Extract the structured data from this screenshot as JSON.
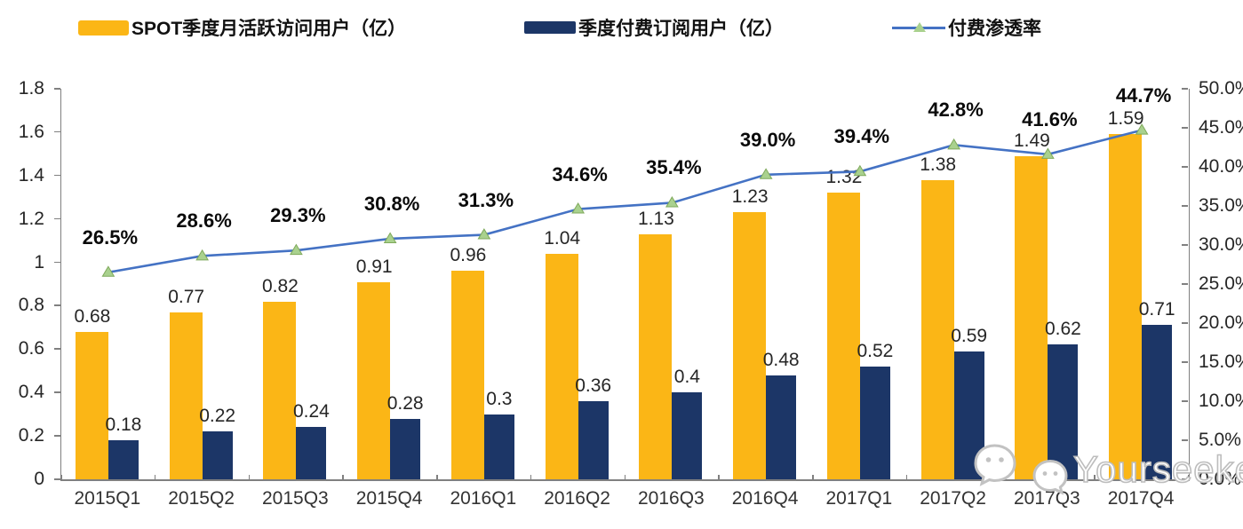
{
  "legend": [
    {
      "label": "SPOT季度月活跃访问用户（亿）",
      "type": "bar",
      "color": "#FBB616"
    },
    {
      "label": "季度付费订阅用户（亿）",
      "type": "bar",
      "color": "#1C3667"
    },
    {
      "label": "付费渗透率",
      "type": "line",
      "color": "#4472C4",
      "marker_color": "#A9D18E"
    }
  ],
  "watermark": {
    "text": "Yourseeker",
    "icon": "wechat-icon"
  },
  "colors": {
    "bar_mau": "#FBB616",
    "bar_subs": "#1C3667",
    "line": "#4472C4",
    "marker_fill": "#A9D18E",
    "marker_edge": "#7FA95B",
    "axis": "#808080",
    "watermark": "#BDBDBD"
  },
  "chart_data": {
    "type": "combo-bar-line",
    "title": "",
    "categories": [
      "2015Q1",
      "2015Q2",
      "2015Q3",
      "2015Q4",
      "2016Q1",
      "2016Q2",
      "2016Q3",
      "2016Q4",
      "2017Q1",
      "2017Q2",
      "2017Q3",
      "2017Q4"
    ],
    "series": [
      {
        "name": "SPOT季度月活跃访问用户（亿）",
        "type": "bar",
        "axis": "left",
        "color": "#FBB616",
        "values": [
          0.68,
          0.77,
          0.82,
          0.91,
          0.96,
          1.04,
          1.13,
          1.23,
          1.32,
          1.38,
          1.49,
          1.59
        ],
        "labels": [
          "0.68",
          "0.77",
          "0.82",
          "0.91",
          "0.96",
          "1.04",
          "1.13",
          "1.23",
          "1.32",
          "1.38",
          "1.49",
          "1.59"
        ]
      },
      {
        "name": "季度付费订阅用户（亿）",
        "type": "bar",
        "axis": "left",
        "color": "#1C3667",
        "values": [
          0.18,
          0.22,
          0.24,
          0.28,
          0.3,
          0.36,
          0.4,
          0.48,
          0.52,
          0.59,
          0.62,
          0.71
        ],
        "labels": [
          "0.18",
          "0.22",
          "0.24",
          "0.28",
          "0.3",
          "0.36",
          "0.4",
          "0.48",
          "0.52",
          "0.59",
          "0.62",
          "0.71"
        ]
      },
      {
        "name": "付费渗透率",
        "type": "line",
        "axis": "right",
        "color": "#4472C4",
        "marker_color": "#A9D18E",
        "values": [
          26.5,
          28.6,
          29.3,
          30.8,
          31.3,
          34.6,
          35.4,
          39.0,
          39.4,
          42.8,
          41.6,
          44.7
        ],
        "labels": [
          "26.5%",
          "28.6%",
          "29.3%",
          "30.8%",
          "31.3%",
          "34.6%",
          "35.4%",
          "39.0%",
          "39.4%",
          "42.8%",
          "41.6%",
          "44.7%"
        ]
      }
    ],
    "left_axis": {
      "min": 0,
      "max": 1.8,
      "ticks": [
        "0",
        "0.2",
        "0.4",
        "0.6",
        "0.8",
        "1",
        "1.2",
        "1.4",
        "1.6",
        "1.8"
      ]
    },
    "right_axis": {
      "min": 0,
      "max": 50,
      "ticks": [
        "0.0%",
        "5.0%",
        "10.0%",
        "15.0%",
        "20.0%",
        "25.0%",
        "30.0%",
        "35.0%",
        "40.0%",
        "45.0%",
        "50.0%"
      ]
    },
    "grid": false,
    "legend_position": "top"
  }
}
